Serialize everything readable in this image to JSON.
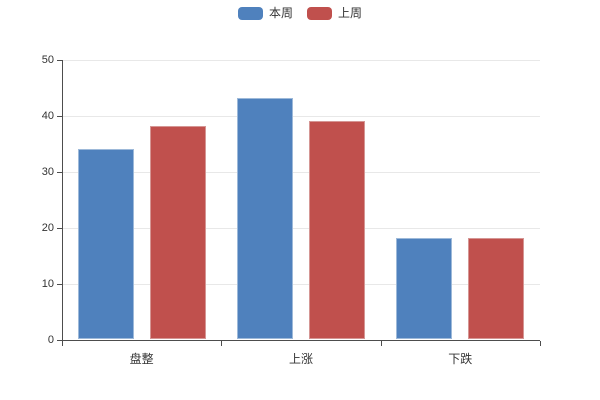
{
  "chart_data": {
    "type": "bar",
    "title": "",
    "categories": [
      "盘整",
      "上涨",
      "下跌"
    ],
    "series": [
      {
        "name": "本周",
        "color": "#4f81bd",
        "border_color": "#9db9d9",
        "values": [
          34,
          43,
          18
        ]
      },
      {
        "name": "上周",
        "color": "#c0504d",
        "border_color": "#d59694",
        "values": [
          38,
          39,
          18
        ]
      }
    ],
    "xlabel": "",
    "ylabel": "",
    "ylim": [
      0,
      50
    ],
    "yticks": [
      0,
      10,
      20,
      30,
      40,
      50
    ],
    "grid": true,
    "legend_position": "top"
  },
  "legend": {
    "items": [
      {
        "label": "本周"
      },
      {
        "label": "上周"
      }
    ]
  },
  "colors": {
    "background": "#ffffff",
    "axis": "#4d4d4d",
    "gridline": "#e8e8e8",
    "text": "#333333"
  }
}
